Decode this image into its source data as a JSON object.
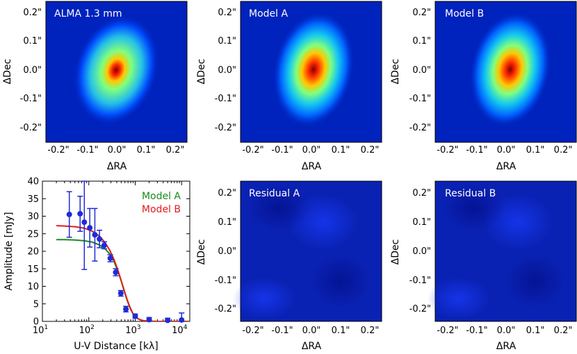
{
  "chart_data": [
    {
      "type": "heatmap",
      "title": "ALMA 1.3 mm",
      "xlabel": "ΔRA",
      "ylabel": "ΔDec",
      "xlim": [
        -0.25,
        0.25
      ],
      "ylim": [
        -0.25,
        0.25
      ],
      "xticks": [
        "-0.2\"",
        "-0.1\"",
        "0.0\"",
        "0.1\"",
        "0.2\""
      ],
      "yticks": [
        "0.2\"",
        "0.1\"",
        "0.0\"",
        "-0.1\"",
        "-0.2\""
      ],
      "colormap": "jet"
    },
    {
      "type": "heatmap",
      "title": "Model A",
      "xlabel": "ΔRA",
      "ylabel": "ΔDec",
      "xlim": [
        -0.25,
        0.25
      ],
      "ylim": [
        -0.25,
        0.25
      ],
      "xticks": [
        "-0.2\"",
        "-0.1\"",
        "0.0\"",
        "0.1\"",
        "0.2\""
      ],
      "yticks": [
        "0.2\"",
        "0.1\"",
        "0.0\"",
        "-0.1\"",
        "-0.2\""
      ],
      "colormap": "jet"
    },
    {
      "type": "heatmap",
      "title": "Model B",
      "xlabel": "ΔRA",
      "ylabel": "ΔDec",
      "xlim": [
        -0.25,
        0.25
      ],
      "ylim": [
        -0.25,
        0.25
      ],
      "xticks": [
        "-0.2\"",
        "-0.1\"",
        "0.0\"",
        "0.1\"",
        "0.2\""
      ],
      "yticks": [
        "0.2\"",
        "0.1\"",
        "0.0\"",
        "-0.1\"",
        "-0.2\""
      ],
      "colormap": "jet"
    },
    {
      "type": "line",
      "xlabel": "U-V Distance [kλ]",
      "ylabel": "Amplitude [mJy]",
      "xscale": "log",
      "xlim": [
        10,
        15000
      ],
      "ylim": [
        0,
        40
      ],
      "xticks": [
        10,
        100,
        1000,
        10000
      ],
      "yticks": [
        0,
        5,
        10,
        15,
        20,
        25,
        30,
        35,
        40
      ],
      "legend": "top-right",
      "observed": {
        "x": [
          38,
          65,
          80,
          105,
          135,
          170,
          215,
          290,
          380,
          490,
          630,
          1000,
          2000,
          5000,
          10000
        ],
        "y": [
          30.5,
          30.7,
          28.3,
          26.7,
          24.7,
          23.5,
          21.7,
          18.0,
          14.0,
          8.0,
          3.5,
          1.5,
          0.5,
          0.3,
          0.4
        ],
        "err": [
          6.5,
          5.0,
          13.5,
          5.5,
          7.5,
          2.5,
          1.0,
          1.0,
          1.0,
          0.8,
          0.8,
          0.6,
          0.6,
          0.6,
          2.0
        ],
        "color": "#1f2bd6"
      },
      "series": [
        {
          "name": "Model A",
          "color": "#1a8a1a",
          "x": [
            20,
            30,
            50,
            80,
            120,
            170,
            220,
            280,
            350,
            420,
            500,
            580,
            670,
            780,
            900,
            1050,
            1250,
            1500,
            2000,
            3000,
            5000,
            10000,
            14000
          ],
          "y": [
            23.3,
            23.3,
            23.2,
            23.0,
            22.6,
            21.8,
            20.8,
            19.3,
            17.0,
            14.5,
            11.5,
            8.6,
            6.0,
            3.7,
            2.1,
            1.1,
            0.5,
            0.2,
            0.05,
            0.0,
            0.0,
            0.0,
            0.0
          ]
        },
        {
          "name": "Model B",
          "color": "#e31a1a",
          "x": [
            20,
            30,
            50,
            80,
            120,
            170,
            220,
            280,
            350,
            420,
            500,
            580,
            670,
            780,
            900,
            1050,
            1250,
            1500,
            2000,
            3000,
            5000,
            10000,
            14000
          ],
          "y": [
            27.3,
            27.2,
            27.0,
            26.6,
            25.7,
            24.3,
            22.6,
            20.4,
            17.6,
            14.8,
            11.6,
            8.8,
            6.2,
            3.9,
            2.2,
            1.1,
            0.5,
            0.2,
            0.05,
            0.0,
            0.0,
            0.0,
            0.0
          ]
        }
      ]
    },
    {
      "type": "heatmap",
      "title": "Residual A",
      "xlabel": "ΔRA",
      "ylabel": "ΔDec",
      "xlim": [
        -0.25,
        0.25
      ],
      "ylim": [
        -0.25,
        0.25
      ],
      "xticks": [
        "-0.2\"",
        "-0.1\"",
        "0.0\"",
        "0.1\"",
        "0.2\""
      ],
      "yticks": [
        "0.2\"",
        "0.1\"",
        "0.0\"",
        "-0.1\"",
        "-0.2\""
      ],
      "colormap": "jet"
    },
    {
      "type": "heatmap",
      "title": "Residual B",
      "xlabel": "ΔRA",
      "ylabel": "ΔDec",
      "xlim": [
        -0.25,
        0.25
      ],
      "ylim": [
        -0.25,
        0.25
      ],
      "xticks": [
        "-0.2\"",
        "-0.1\"",
        "0.0\"",
        "0.1\"",
        "0.2\""
      ],
      "yticks": [
        "0.2\"",
        "0.1\"",
        "0.0\"",
        "-0.1\"",
        "-0.2\""
      ],
      "colormap": "jet"
    }
  ]
}
